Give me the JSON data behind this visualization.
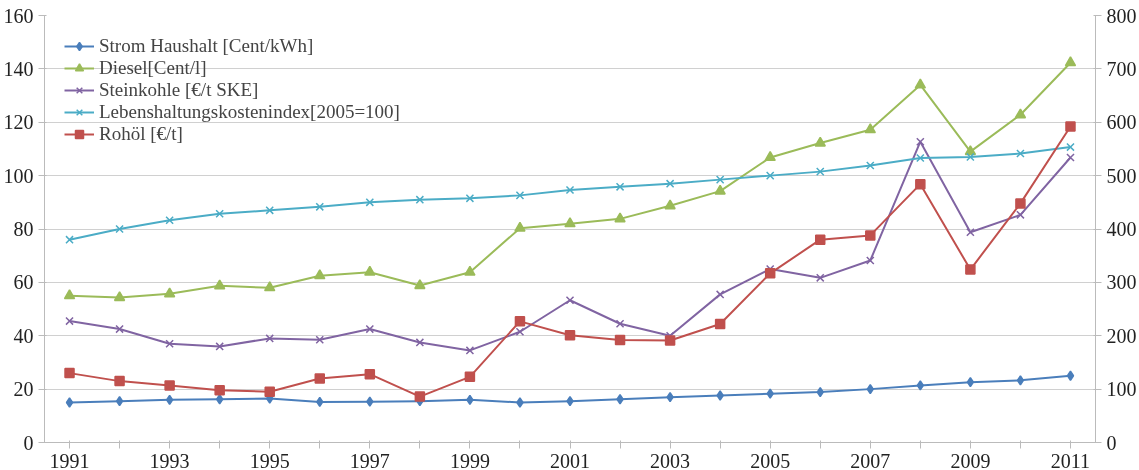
{
  "chart_data": {
    "type": "line",
    "categories": [
      "1991",
      null,
      "1993",
      null,
      "1995",
      null,
      "1997",
      null,
      "1999",
      null,
      "2001",
      null,
      "2003",
      null,
      "2005",
      null,
      "2007",
      null,
      "2009",
      null,
      "2011"
    ],
    "series": [
      {
        "name": "Strom Haushalt [Cent/kWh]",
        "color": "#4a7ebb",
        "marker": "diamond",
        "values": [
          15,
          15.5,
          16,
          16.2,
          16.5,
          15.2,
          15.3,
          15.5,
          16,
          15,
          15.5,
          16.2,
          17,
          17.6,
          18.3,
          18.9,
          20,
          21.4,
          22.6,
          23.3,
          25
        ]
      },
      {
        "name": "Diesel[Cent/l]",
        "color": "#9bbb59",
        "marker": "triangle",
        "values": [
          55,
          54.3,
          55.7,
          58.7,
          58,
          62.5,
          63.8,
          58.8,
          63.8,
          80.3,
          82,
          83.8,
          88.7,
          94.2,
          106.8,
          112.2,
          117.2,
          134,
          109,
          122.8,
          142.3
        ]
      },
      {
        "name": "Steinkohle [€/t SKE]",
        "color": "#8064a2",
        "marker": "cross",
        "values": [
          45.5,
          42.5,
          37,
          36,
          39,
          38.5,
          42.5,
          37.5,
          34.5,
          41.5,
          53.3,
          44.5,
          40,
          55.5,
          65,
          61.7,
          68.2,
          112.7,
          78.8,
          85.3,
          106.8
        ]
      },
      {
        "name": "Lebenshaltungskostenindex[2005=100]",
        "color": "#4bacc6",
        "marker": "cross",
        "values": [
          76,
          80,
          83.3,
          85.7,
          87,
          88.3,
          90,
          91,
          91.5,
          92.6,
          94.6,
          95.8,
          97,
          98.5,
          100,
          101.5,
          103.8,
          106.6,
          107,
          108.3,
          110.7
        ]
      },
      {
        "name": "Rohöl [€/t]",
        "color": "#c0504d",
        "marker": "square",
        "axis": "y2",
        "values": [
          130,
          115,
          107,
          98,
          95,
          120,
          128,
          86,
          123,
          227,
          201,
          192,
          191,
          222,
          317,
          380,
          388,
          484,
          324,
          448,
          592
        ]
      }
    ],
    "ylim": [
      0,
      160
    ],
    "yticks": [
      0,
      20,
      40,
      60,
      80,
      100,
      120,
      140,
      160
    ],
    "y2lim": [
      0,
      800
    ],
    "y2ticks": [
      0,
      100,
      200,
      300,
      400,
      500,
      600,
      700,
      800
    ],
    "grid": "y",
    "legend": "top left"
  }
}
